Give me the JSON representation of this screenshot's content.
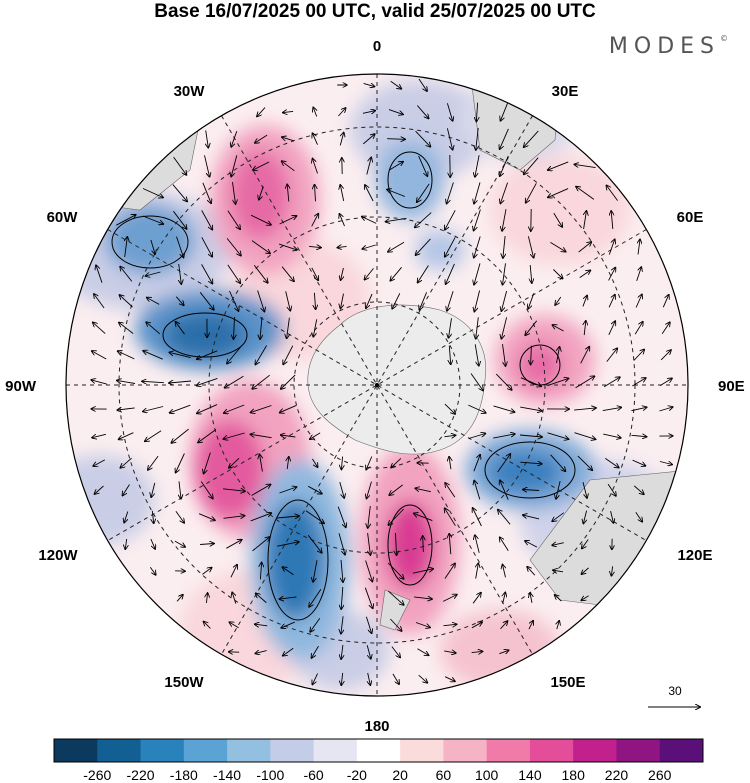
{
  "title": "Base 16/07/2025 00 UTC, valid 25/07/2025 00 UTC",
  "logo": "MODES",
  "logo_mark": "©",
  "map": {
    "projection": "south-polar-stereographic",
    "longitude_labels": {
      "top": "0",
      "top_right": "30E",
      "right_upper": "60E",
      "right": "90E",
      "right_lower": "120E",
      "bottom_right": "150E",
      "bottom": "180",
      "bottom_left": "150W",
      "left_lower": "120W",
      "left": "90W",
      "left_upper": "60W",
      "top_left": "30W"
    },
    "reference_vector": {
      "label": "30"
    }
  },
  "colorbar": {
    "labels": [
      "-260",
      "-220",
      "-180",
      "-140",
      "-100",
      "-60",
      "-20",
      "20",
      "60",
      "100",
      "140",
      "180",
      "220",
      "260"
    ],
    "colors": [
      "#0b3a5e",
      "#125f93",
      "#2a82bd",
      "#5aa3d4",
      "#93bfe0",
      "#c3cde8",
      "#e6e6f2",
      "#ffffff",
      "#fbdcdc",
      "#f7b3c6",
      "#f07aa8",
      "#e34d9a",
      "#c2208c",
      "#8f1682",
      "#5b0f78"
    ]
  },
  "colors": {
    "negative_strong": "#2a7bb8",
    "negative_weak": "#c7cbe6",
    "positive_weak": "#f7c9cf",
    "positive_strong": "#e45aa0",
    "land": "#e8e8e8"
  }
}
